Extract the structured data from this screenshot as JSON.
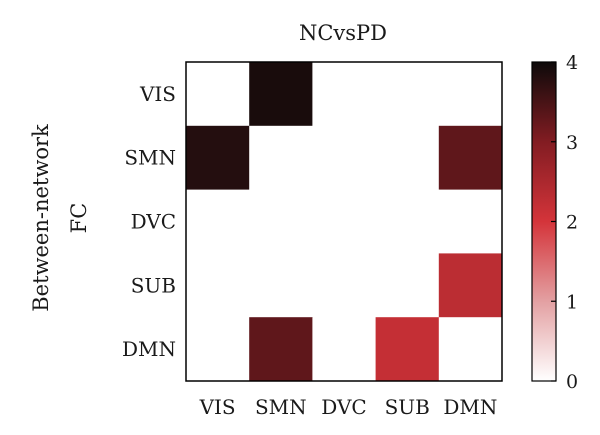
{
  "chart_data": {
    "type": "heatmap",
    "title": "NCvsPD",
    "ylabel_lines": [
      "Between-network",
      "FC"
    ],
    "x_categories": [
      "VIS",
      "SMN",
      "DVC",
      "SUB",
      "DMN"
    ],
    "y_categories": [
      "VIS",
      "SMN",
      "DVC",
      "SUB",
      "DMN"
    ],
    "values": [
      [
        0,
        3.9,
        0,
        0,
        0
      ],
      [
        3.8,
        0,
        0,
        0,
        3.3
      ],
      [
        0,
        0,
        0,
        0,
        0
      ],
      [
        0,
        0,
        0,
        0,
        2.3
      ],
      [
        0,
        3.3,
        0,
        2.2,
        0
      ]
    ],
    "colorbar": {
      "min": 0,
      "max": 4,
      "ticks": [
        0,
        1,
        2,
        3,
        4
      ],
      "colors": [
        "#ffffff",
        "#e3a0a2",
        "#d4343a",
        "#821c22",
        "#0d0a0a"
      ]
    },
    "grid": false
  }
}
